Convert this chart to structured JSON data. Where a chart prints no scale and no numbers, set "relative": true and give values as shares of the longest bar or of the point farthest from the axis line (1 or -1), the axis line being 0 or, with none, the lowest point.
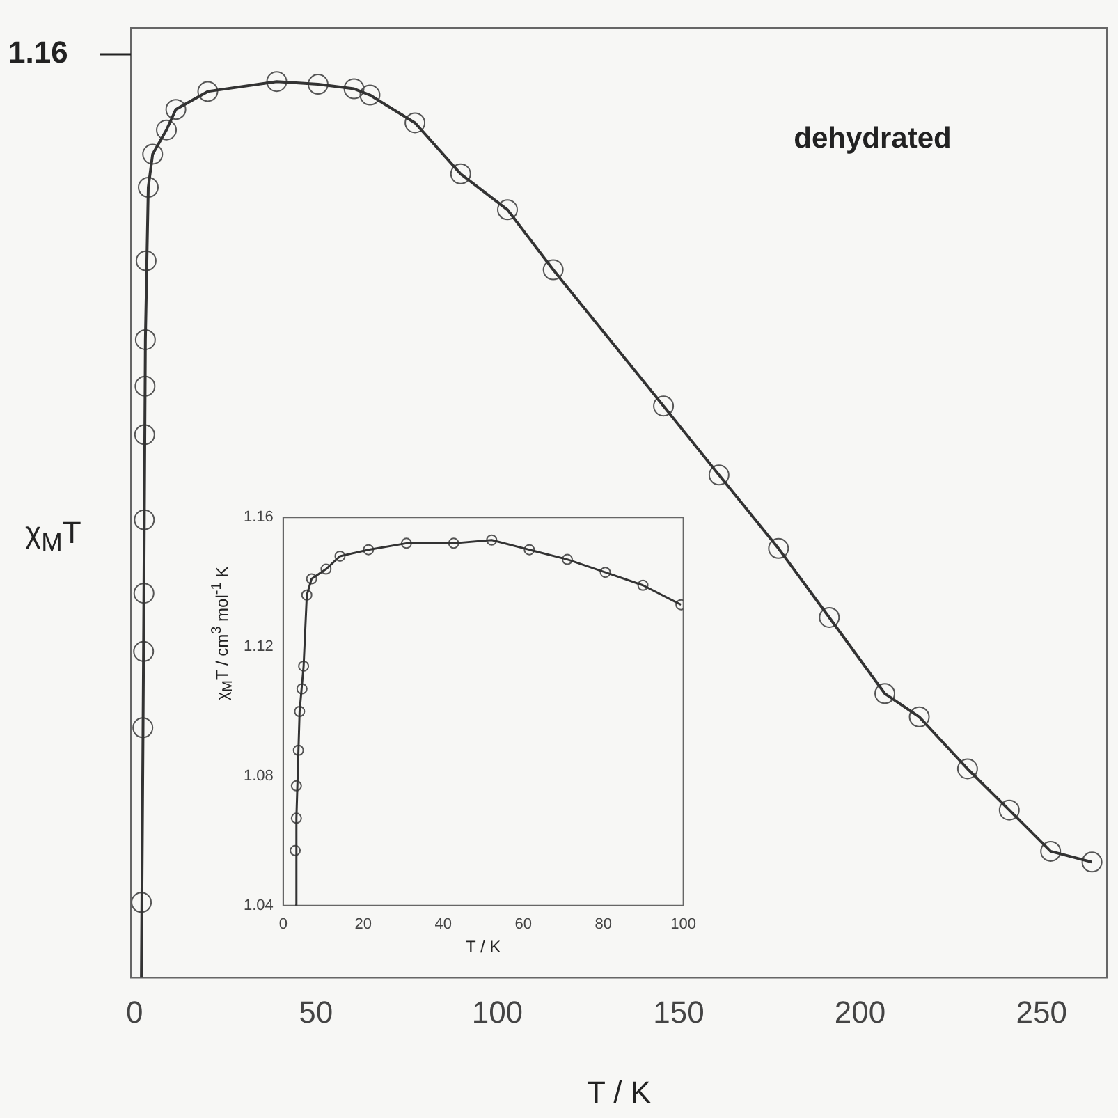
{
  "chart_data": [
    {
      "type": "scatter",
      "xlabel": "T / K",
      "ylabel": "χ$_{M}$T",
      "relative": true,
      "xlim": [
        -1,
        268
      ],
      "xticks": [
        0,
        50,
        100,
        150,
        200,
        250
      ],
      "annotations": [
        "1.16",
        "dehydrated"
      ],
      "series": [
        {
          "type": "scatter",
          "marker": "circle",
          "color": "#555555",
          "x": [
            1.9,
            2.3,
            2.5,
            2.6,
            2.7,
            2.8,
            2.9,
            3.0,
            3.2,
            3.8,
            5.0,
            8.8,
            11.4,
            20.2,
            39.2,
            50.6,
            60.5,
            64.9,
            77.3,
            89.9,
            102.8,
            115.4,
            145.8,
            161.1,
            177.5,
            191.5,
            206.8,
            216.3,
            229.6,
            241.1,
            252.5,
            263.9
          ],
          "values": [
            0.084,
            0.279,
            0.364,
            0.429,
            0.511,
            0.606,
            0.66,
            0.712,
            0.8,
            0.882,
            0.919,
            0.946,
            0.969,
            0.989,
            1.0,
            0.997,
            0.992,
            0.985,
            0.954,
            0.897,
            0.857,
            0.79,
            0.638,
            0.561,
            0.479,
            0.402,
            0.317,
            0.291,
            0.233,
            0.187,
            0.141,
            0.129
          ]
        },
        {
          "type": "line",
          "marker": "none",
          "color": "#333333",
          "x": [
            1.9,
            2.5,
            3.0,
            3.8,
            5.0,
            8.8,
            11.4,
            20.2,
            39.2,
            50.6,
            60.5,
            64.9,
            77.3,
            89.9,
            102.8,
            115.4,
            145.8,
            161.1,
            177.5,
            191.5,
            206.8,
            216.3,
            229.6,
            241.1,
            252.5,
            263.9
          ],
          "values": [
            0.0,
            0.364,
            0.712,
            0.882,
            0.919,
            0.946,
            0.969,
            0.989,
            1.0,
            0.997,
            0.992,
            0.985,
            0.954,
            0.897,
            0.857,
            0.79,
            0.638,
            0.561,
            0.479,
            0.402,
            0.317,
            0.291,
            0.233,
            0.187,
            0.141,
            0.129
          ]
        }
      ]
    },
    {
      "type": "scatter",
      "xlabel": "T / K",
      "ylabel": "χ$_{M}$T / cm$^{3}$ mol$^{-1}$ K",
      "xlim": [
        0,
        100
      ],
      "xticks": [
        0,
        20,
        40,
        60,
        80,
        100
      ],
      "ylim": [
        1.04,
        1.16
      ],
      "yticks": [
        1.04,
        1.08,
        1.12,
        1.16
      ],
      "series": [
        {
          "type": "scatter",
          "marker": "circle",
          "color": "#555555",
          "x": [
            3.0,
            3.3,
            3.3,
            3.8,
            4.1,
            4.7,
            5.1,
            5.9,
            7.1,
            10.7,
            14.2,
            21.3,
            30.8,
            42.6,
            52.1,
            61.5,
            71.0,
            80.5,
            89.9,
            99.4
          ],
          "values": [
            1.057,
            1.067,
            1.077,
            1.088,
            1.1,
            1.107,
            1.114,
            1.136,
            1.141,
            1.144,
            1.148,
            1.15,
            1.152,
            1.152,
            1.153,
            1.15,
            1.147,
            1.143,
            1.139,
            1.133
          ]
        },
        {
          "type": "line",
          "marker": "none",
          "color": "#333333",
          "x": [
            3.0,
            3.3,
            4.1,
            5.1,
            5.9,
            7.1,
            10.7,
            14.2,
            21.3,
            30.8,
            42.6,
            52.1,
            61.5,
            71.0,
            80.5,
            89.9,
            99.4
          ],
          "values": [
            1.04,
            1.067,
            1.1,
            1.114,
            1.136,
            1.141,
            1.144,
            1.148,
            1.15,
            1.152,
            1.152,
            1.153,
            1.15,
            1.147,
            1.143,
            1.139,
            1.133
          ]
        }
      ]
    }
  ]
}
